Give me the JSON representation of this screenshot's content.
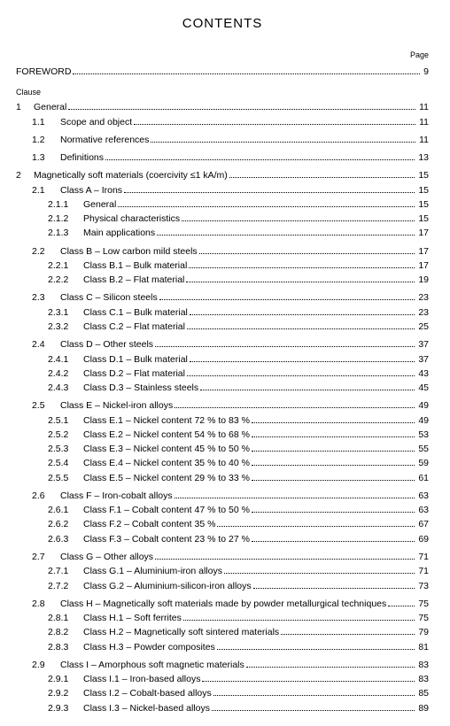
{
  "title": "CONTENTS",
  "page_label": "Page",
  "clause_label": "Clause",
  "foreword": {
    "label": "FOREWORD",
    "page": "9"
  },
  "sections": [
    {
      "level": 0,
      "num": "1",
      "title": "General",
      "page": "11"
    },
    {
      "level": 1,
      "num": "1.1",
      "title": "Scope and object",
      "page": "11"
    },
    {
      "level": 1,
      "num": "1.2",
      "title": "Normative references",
      "page": "11"
    },
    {
      "level": 1,
      "num": "1.3",
      "title": "Definitions",
      "page": "13"
    },
    {
      "level": 0,
      "num": "2",
      "title": "Magnetically soft materials (coercivity ≤1 kA/m)",
      "page": "15"
    },
    {
      "level": 1,
      "num": "2.1",
      "title": "Class A – Irons",
      "page": "15"
    },
    {
      "level": 2,
      "num": "2.1.1",
      "title": "General",
      "page": "15"
    },
    {
      "level": 2,
      "num": "2.1.2",
      "title": "Physical characteristics",
      "page": "15"
    },
    {
      "level": 2,
      "num": "2.1.3",
      "title": "Main applications",
      "page": "17"
    },
    {
      "level": 1,
      "num": "2.2",
      "title": "Class B – Low carbon mild steels",
      "page": "17"
    },
    {
      "level": 2,
      "num": "2.2.1",
      "title": "Class B.1 – Bulk material",
      "page": "17"
    },
    {
      "level": 2,
      "num": "2.2.2",
      "title": "Class B.2 – Flat material",
      "page": "19"
    },
    {
      "level": 1,
      "num": "2.3",
      "title": "Class C – Silicon steels",
      "page": "23"
    },
    {
      "level": 2,
      "num": "2.3.1",
      "title": "Class C.1 – Bulk material",
      "page": "23"
    },
    {
      "level": 2,
      "num": "2.3.2",
      "title": "Class C.2 – Flat material",
      "page": "25"
    },
    {
      "level": 1,
      "num": "2.4",
      "title": "Class D – Other steels",
      "page": "37"
    },
    {
      "level": 2,
      "num": "2.4.1",
      "title": "Class D.1 – Bulk material",
      "page": "37"
    },
    {
      "level": 2,
      "num": "2.4.2",
      "title": "Class D.2 – Flat material",
      "page": "43"
    },
    {
      "level": 2,
      "num": "2.4.3",
      "title": "Class D.3 – Stainless steels",
      "page": "45"
    },
    {
      "level": 1,
      "num": "2.5",
      "title": "Class E – Nickel-iron alloys",
      "page": "49"
    },
    {
      "level": 2,
      "num": "2.5.1",
      "title": "Class E.1 – Nickel content 72 % to 83 %",
      "page": "49"
    },
    {
      "level": 2,
      "num": "2.5.2",
      "title": "Class E.2 – Nickel content 54 % to 68 %",
      "page": "53"
    },
    {
      "level": 2,
      "num": "2.5.3",
      "title": "Class E.3 – Nickel content 45 % to 50 %",
      "page": "55"
    },
    {
      "level": 2,
      "num": "2.5.4",
      "title": "Class E.4 – Nickel content 35 % to 40 %",
      "page": "59"
    },
    {
      "level": 2,
      "num": "2.5.5",
      "title": "Class E.5 – Nickel content 29 % to 33 %",
      "page": "61"
    },
    {
      "level": 1,
      "num": "2.6",
      "title": "Class F – Iron-cobalt alloys",
      "page": "63"
    },
    {
      "level": 2,
      "num": "2.6.1",
      "title": "Class F.1 – Cobalt content 47 % to 50 %",
      "page": "63"
    },
    {
      "level": 2,
      "num": "2.6.2",
      "title": "Class F.2 – Cobalt content 35 %",
      "page": "67"
    },
    {
      "level": 2,
      "num": "2.6.3",
      "title": "Class F.3 – Cobalt content 23 % to 27 %",
      "page": "69"
    },
    {
      "level": 1,
      "num": "2.7",
      "title": "Class G – Other alloys",
      "page": "71"
    },
    {
      "level": 2,
      "num": "2.7.1",
      "title": "Class G.1 – Aluminium-iron alloys",
      "page": "71"
    },
    {
      "level": 2,
      "num": "2.7.2",
      "title": "Class G.2 – Aluminium-silicon-iron alloys",
      "page": "73"
    },
    {
      "level": 1,
      "num": "2.8",
      "title": "Class H – Magnetically soft materials made by powder metallurgical techniques",
      "page": "75"
    },
    {
      "level": 2,
      "num": "2.8.1",
      "title": "Class H.1 – Soft ferrites",
      "page": "75"
    },
    {
      "level": 2,
      "num": "2.8.2",
      "title": "Class H.2 – Magnetically soft sintered materials",
      "page": "79"
    },
    {
      "level": 2,
      "num": "2.8.3",
      "title": "Class H.3 – Powder composites",
      "page": "81"
    },
    {
      "level": 1,
      "num": "2.9",
      "title": "Class I – Amorphous soft magnetic materials",
      "page": "83"
    },
    {
      "level": 2,
      "num": "2.9.1",
      "title": "Class I.1 – Iron-based alloys",
      "page": "83"
    },
    {
      "level": 2,
      "num": "2.9.2",
      "title": "Class I.2 – Cobalt-based alloys",
      "page": "85"
    },
    {
      "level": 2,
      "num": "2.9.3",
      "title": "Class I.3 – Nickel-based alloys",
      "page": "89"
    }
  ]
}
